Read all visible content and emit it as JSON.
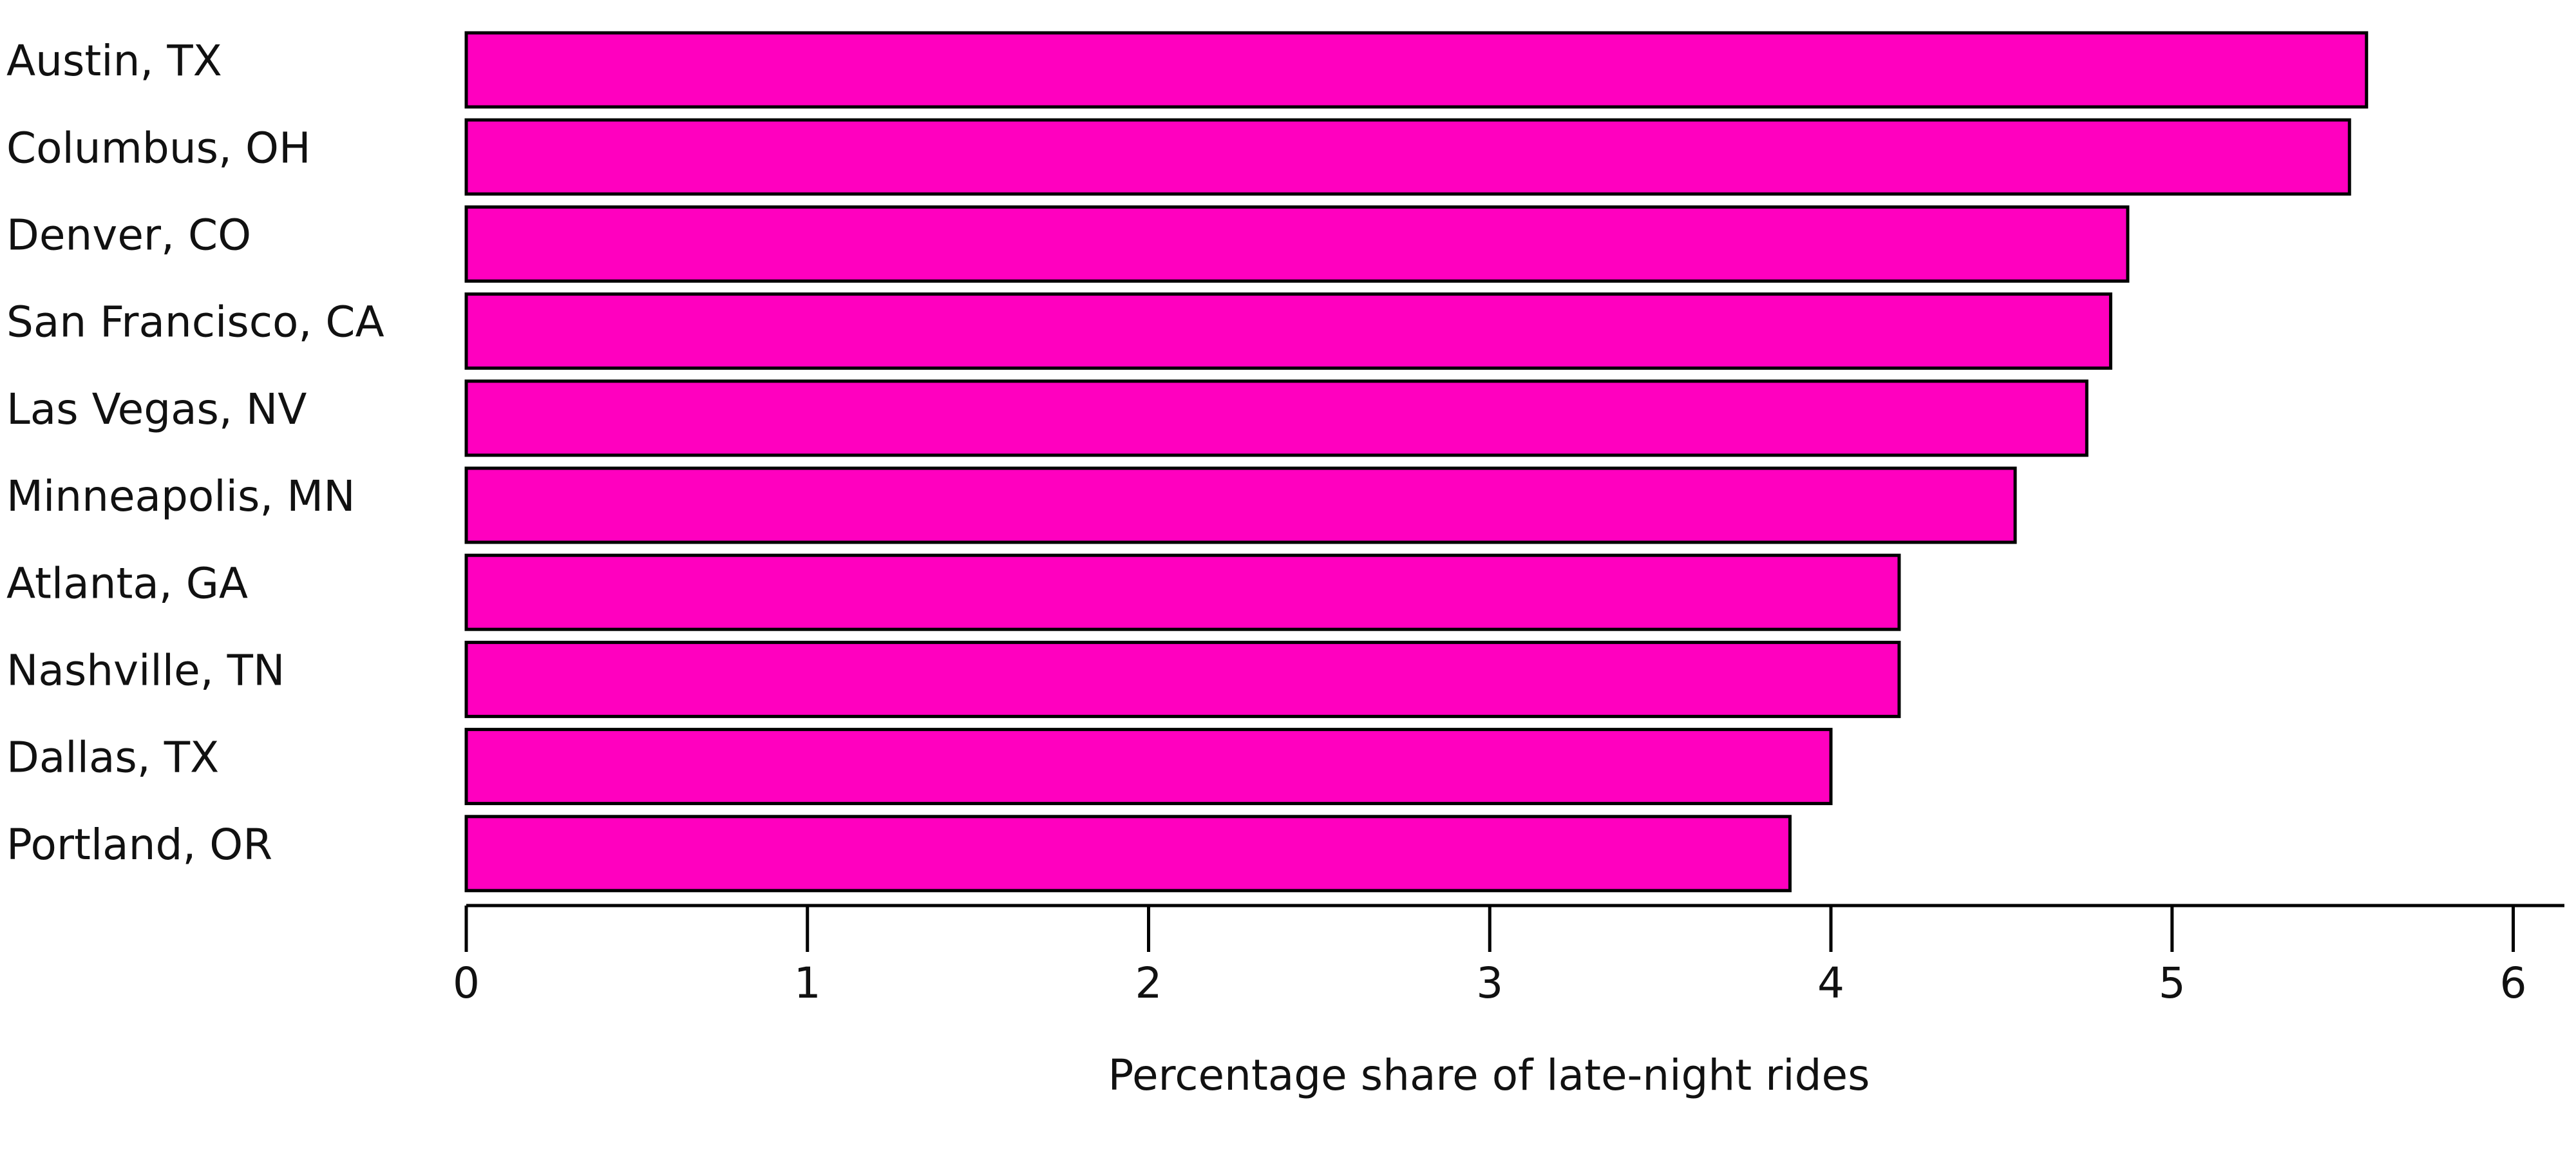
{
  "chart_data": {
    "type": "hbar",
    "categories": [
      "Austin, TX",
      "Columbus, OH",
      "Denver, CO",
      "San Francisco, CA",
      "Las Vegas, NV",
      "Minneapolis, MN",
      "Atlanta, GA",
      "Nashville, TN",
      "Dallas, TX",
      "Portland, OR"
    ],
    "values": [
      5.57,
      5.52,
      4.87,
      4.82,
      4.75,
      4.54,
      4.2,
      4.2,
      4.0,
      3.88
    ],
    "color": "#ff00bf",
    "xlabel": "Percentage share of late-night rides",
    "xlim": [
      0,
      6.15
    ],
    "xticks": [
      0,
      1,
      2,
      3,
      4,
      5,
      6
    ]
  }
}
